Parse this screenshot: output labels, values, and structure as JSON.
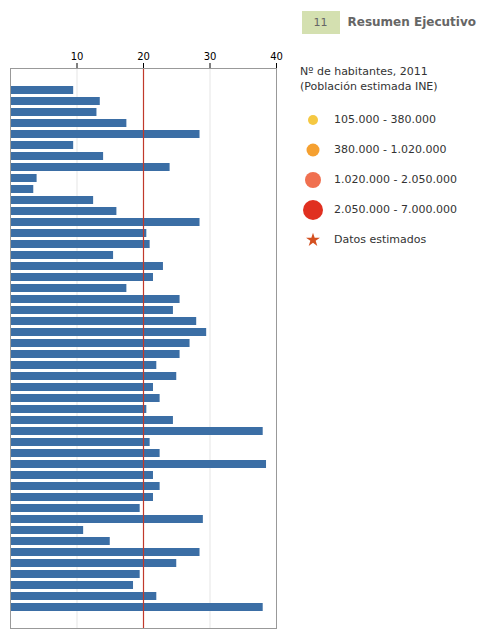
{
  "chart_data": {
    "type": "bar",
    "orientation": "horizontal",
    "title": "Resumen Ejecutivo",
    "annotation": "11",
    "categories": [
      null,
      null,
      null,
      null,
      null,
      null,
      null,
      null,
      null,
      null,
      null,
      null,
      null,
      null,
      null,
      null,
      null,
      null,
      null,
      null,
      null,
      null,
      null,
      null,
      null,
      null,
      null,
      null,
      null,
      null,
      null,
      null,
      null,
      null,
      null,
      null,
      null,
      null,
      null,
      null,
      null,
      null,
      null,
      null,
      null,
      null,
      null,
      null
    ],
    "values": [
      9.5,
      13.5,
      13.0,
      17.5,
      28.5,
      9.5,
      14.0,
      24.0,
      4.0,
      3.5,
      12.5,
      16.0,
      28.5,
      20.5,
      21.0,
      15.5,
      23.0,
      21.5,
      17.5,
      25.5,
      24.5,
      28.0,
      29.5,
      27.0,
      25.5,
      22.0,
      25.0,
      21.5,
      22.5,
      20.5,
      24.5,
      38.0,
      21.0,
      22.5,
      38.5,
      21.5,
      22.5,
      21.5,
      19.5,
      29.0,
      11.0,
      15.0,
      28.5,
      25.0,
      19.5,
      18.5,
      22.0,
      38.0
    ],
    "color": "#3b6ea5",
    "xlim": [
      0,
      40
    ],
    "xticks": [
      10,
      20,
      30,
      40
    ],
    "grid": true,
    "tick_labels": "x",
    "reference_line": {
      "value": 20,
      "color": "#c0392b"
    },
    "legend_title": "Nº de habitantes, 2011\n(Población estimada INE)",
    "legend_items": [
      {
        "label": "105.000 - 380.000",
        "color": "#f5c842",
        "marker": "circle"
      },
      {
        "label": "380.000 - 1.020.000",
        "color": "#f5a030",
        "marker": "circle"
      },
      {
        "label": "1.020.000 - 2.050.000",
        "color": "#f07050",
        "marker": "circle"
      },
      {
        "label": "2.050.000 - 7.000.000",
        "color": "#e03020",
        "marker": "circle"
      },
      {
        "label": "Datos estimados",
        "color": "#d45020",
        "marker": "star"
      }
    ]
  }
}
